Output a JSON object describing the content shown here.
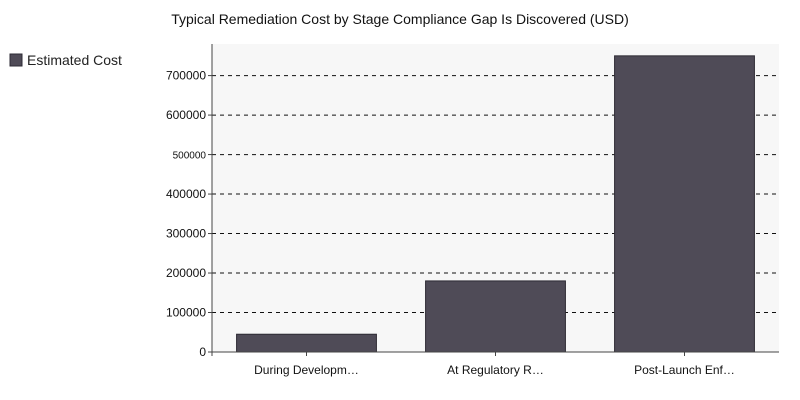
{
  "chart_data": {
    "type": "bar",
    "title": "Typical Remediation Cost by Stage Compliance Gap Is Discovered (USD)",
    "categories": [
      "During Developm…",
      "At Regulatory R…",
      "Post-Launch Enf…"
    ],
    "series": [
      {
        "name": "Estimated Cost",
        "values": [
          45000,
          180000,
          750000
        ]
      }
    ],
    "yticks": [
      "0",
      "100000",
      "200000",
      "300000",
      "400000",
      "500000",
      "600000",
      "700000"
    ],
    "ylim": [
      0,
      780000
    ],
    "xlabel": "",
    "ylabel": "",
    "grid": "horizontal dashed",
    "legend_position": "top-left",
    "colors": {
      "bar": "#4f4b57",
      "bar_edge": "#2e2b34",
      "plot_background": "#f7f7f7",
      "grid": "#111111",
      "axis": "#444444"
    }
  }
}
